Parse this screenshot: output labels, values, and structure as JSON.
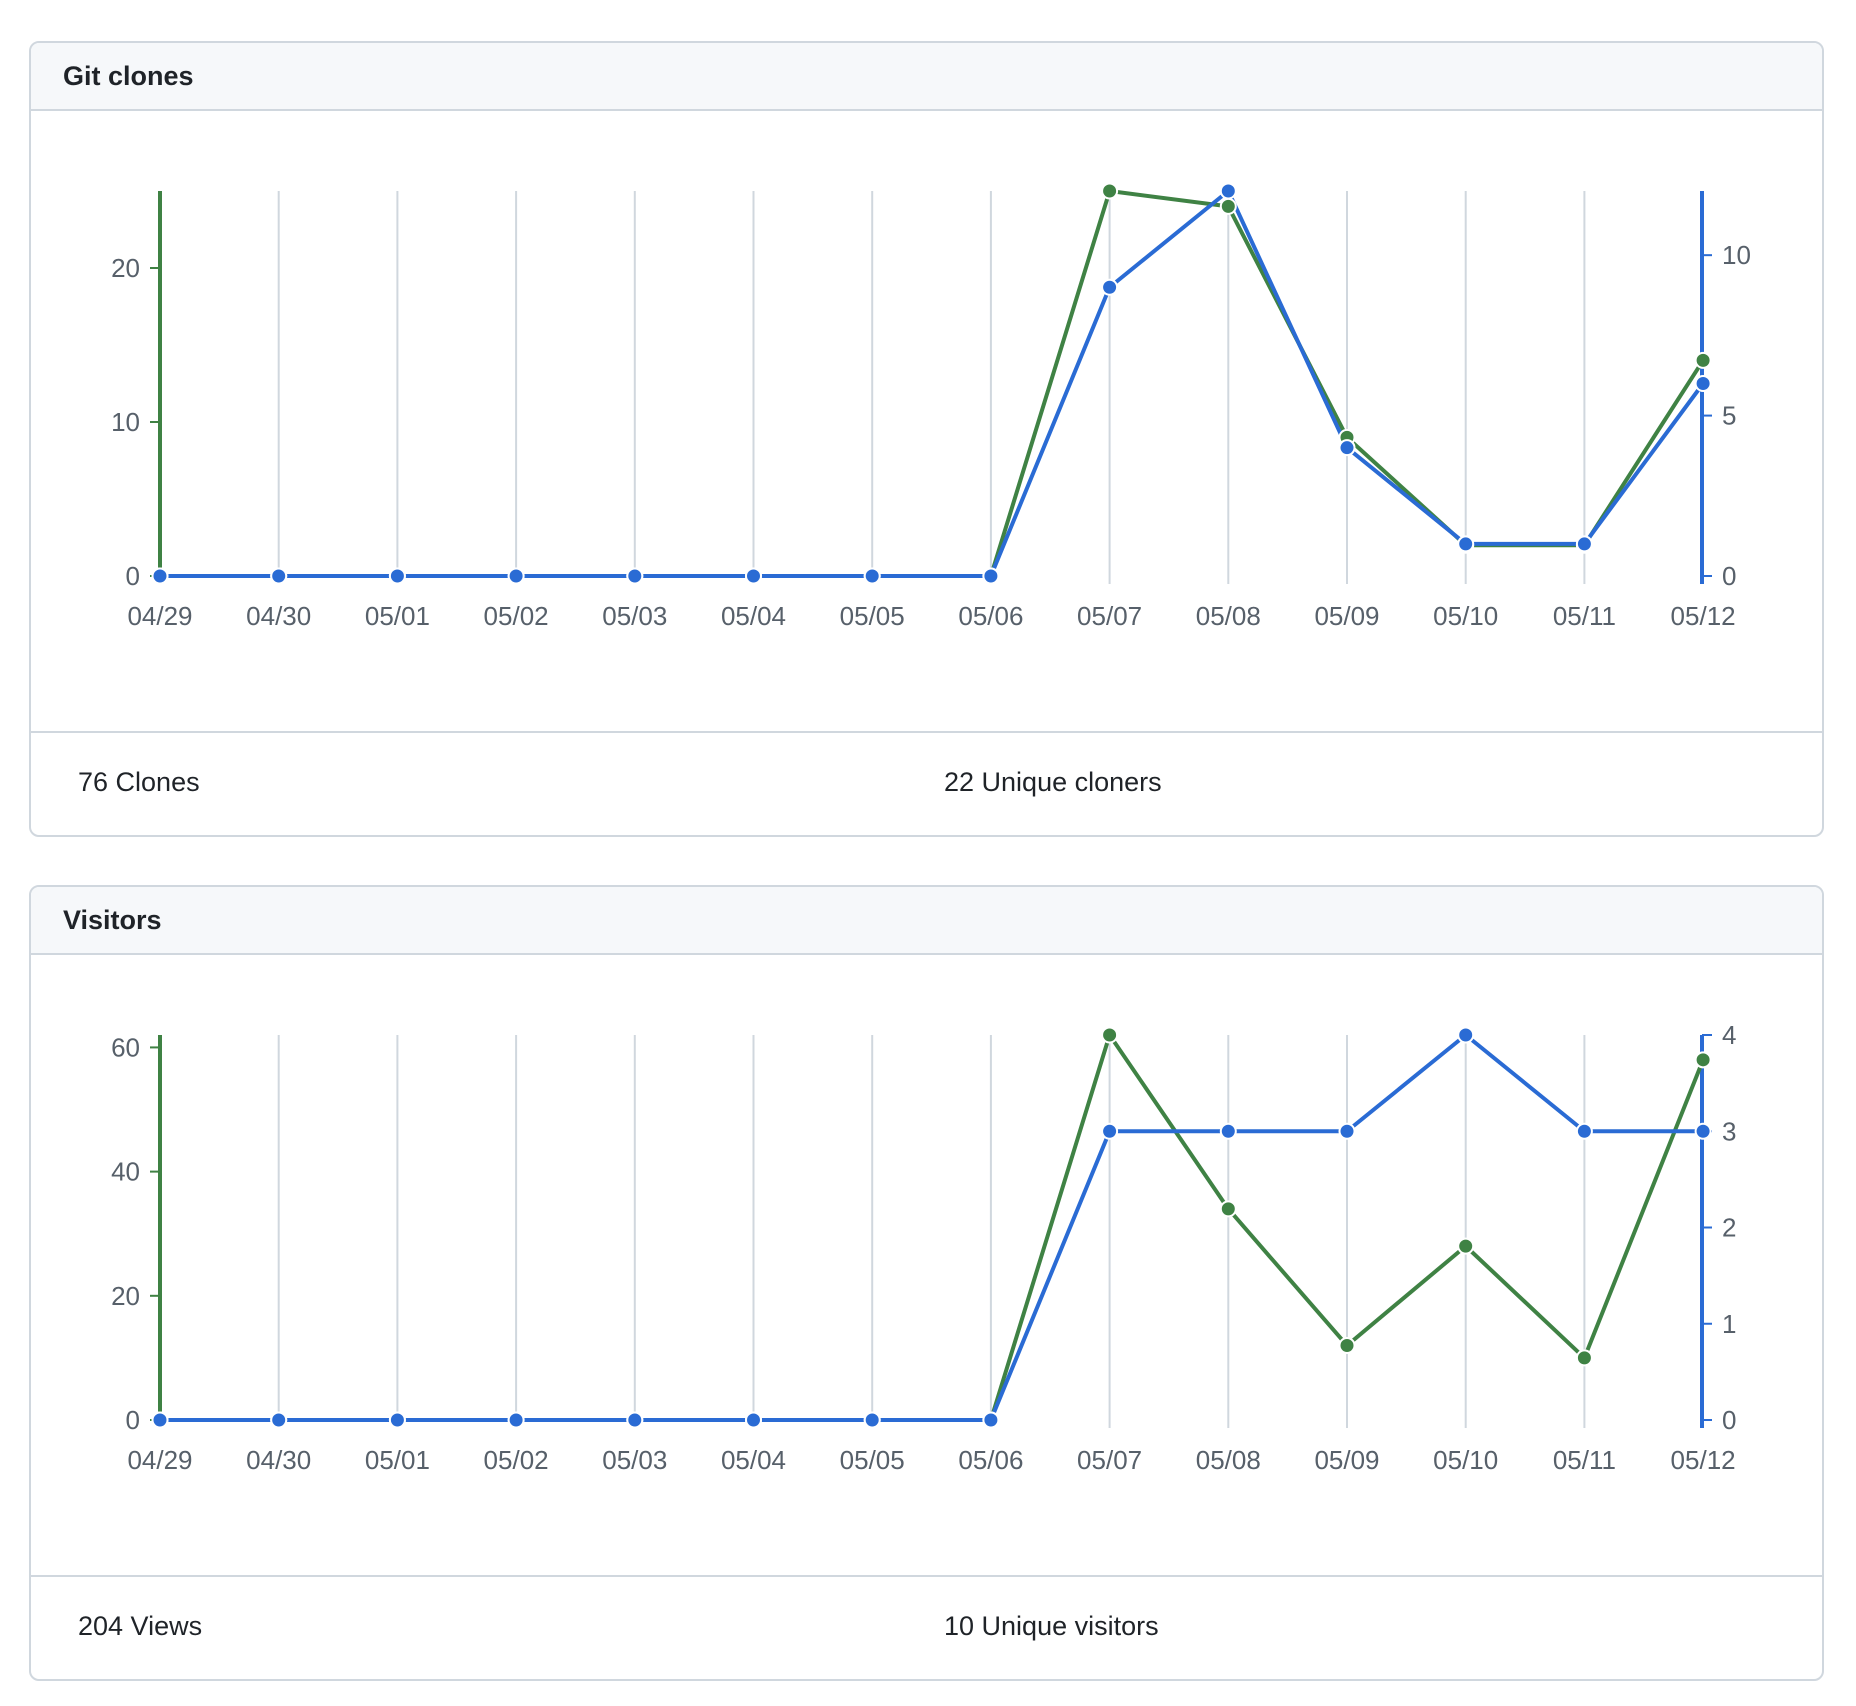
{
  "colors": {
    "left_series": "#3f8244",
    "right_series": "#2a6bd4",
    "grid": "#d0d7de",
    "tick_text": "#57606a"
  },
  "panels": [
    {
      "title": "Git clones",
      "stats": {
        "left": "76 Clones",
        "right": "22 Unique cloners"
      }
    },
    {
      "title": "Visitors",
      "stats": {
        "left": "204 Views",
        "right": "10 Unique visitors"
      }
    }
  ],
  "chart_data": [
    {
      "type": "line",
      "title": "Git clones",
      "categories": [
        "04/29",
        "04/30",
        "05/01",
        "05/02",
        "05/03",
        "05/04",
        "05/05",
        "05/06",
        "05/07",
        "05/08",
        "05/09",
        "05/10",
        "05/11",
        "05/12"
      ],
      "left_axis": {
        "ticks": [
          0,
          10,
          20
        ],
        "ylim": [
          0,
          25
        ]
      },
      "right_axis": {
        "ticks": [
          0,
          5,
          10
        ],
        "ylim": [
          0,
          12
        ]
      },
      "grid": "vertical",
      "series": [
        {
          "axis": "left",
          "color": "green",
          "values": [
            0,
            0,
            0,
            0,
            0,
            0,
            0,
            0,
            25,
            24,
            9,
            2,
            2,
            14
          ]
        },
        {
          "axis": "right",
          "color": "blue",
          "values": [
            0,
            0,
            0,
            0,
            0,
            0,
            0,
            0,
            9,
            12,
            4,
            1,
            1,
            6
          ]
        }
      ]
    },
    {
      "type": "line",
      "title": "Visitors",
      "categories": [
        "04/29",
        "04/30",
        "05/01",
        "05/02",
        "05/03",
        "05/04",
        "05/05",
        "05/06",
        "05/07",
        "05/08",
        "05/09",
        "05/10",
        "05/11",
        "05/12"
      ],
      "left_axis": {
        "ticks": [
          0,
          20,
          40,
          60
        ],
        "ylim": [
          0,
          62
        ]
      },
      "right_axis": {
        "ticks": [
          0,
          1,
          2,
          3,
          4
        ],
        "ylim": [
          0,
          4
        ]
      },
      "grid": "vertical",
      "series": [
        {
          "axis": "left",
          "color": "green",
          "values": [
            0,
            0,
            0,
            0,
            0,
            0,
            0,
            0,
            62,
            34,
            12,
            28,
            10,
            58
          ]
        },
        {
          "axis": "right",
          "color": "blue",
          "values": [
            0,
            0,
            0,
            0,
            0,
            0,
            0,
            0,
            3,
            3,
            3,
            4,
            3,
            3
          ]
        }
      ]
    }
  ]
}
